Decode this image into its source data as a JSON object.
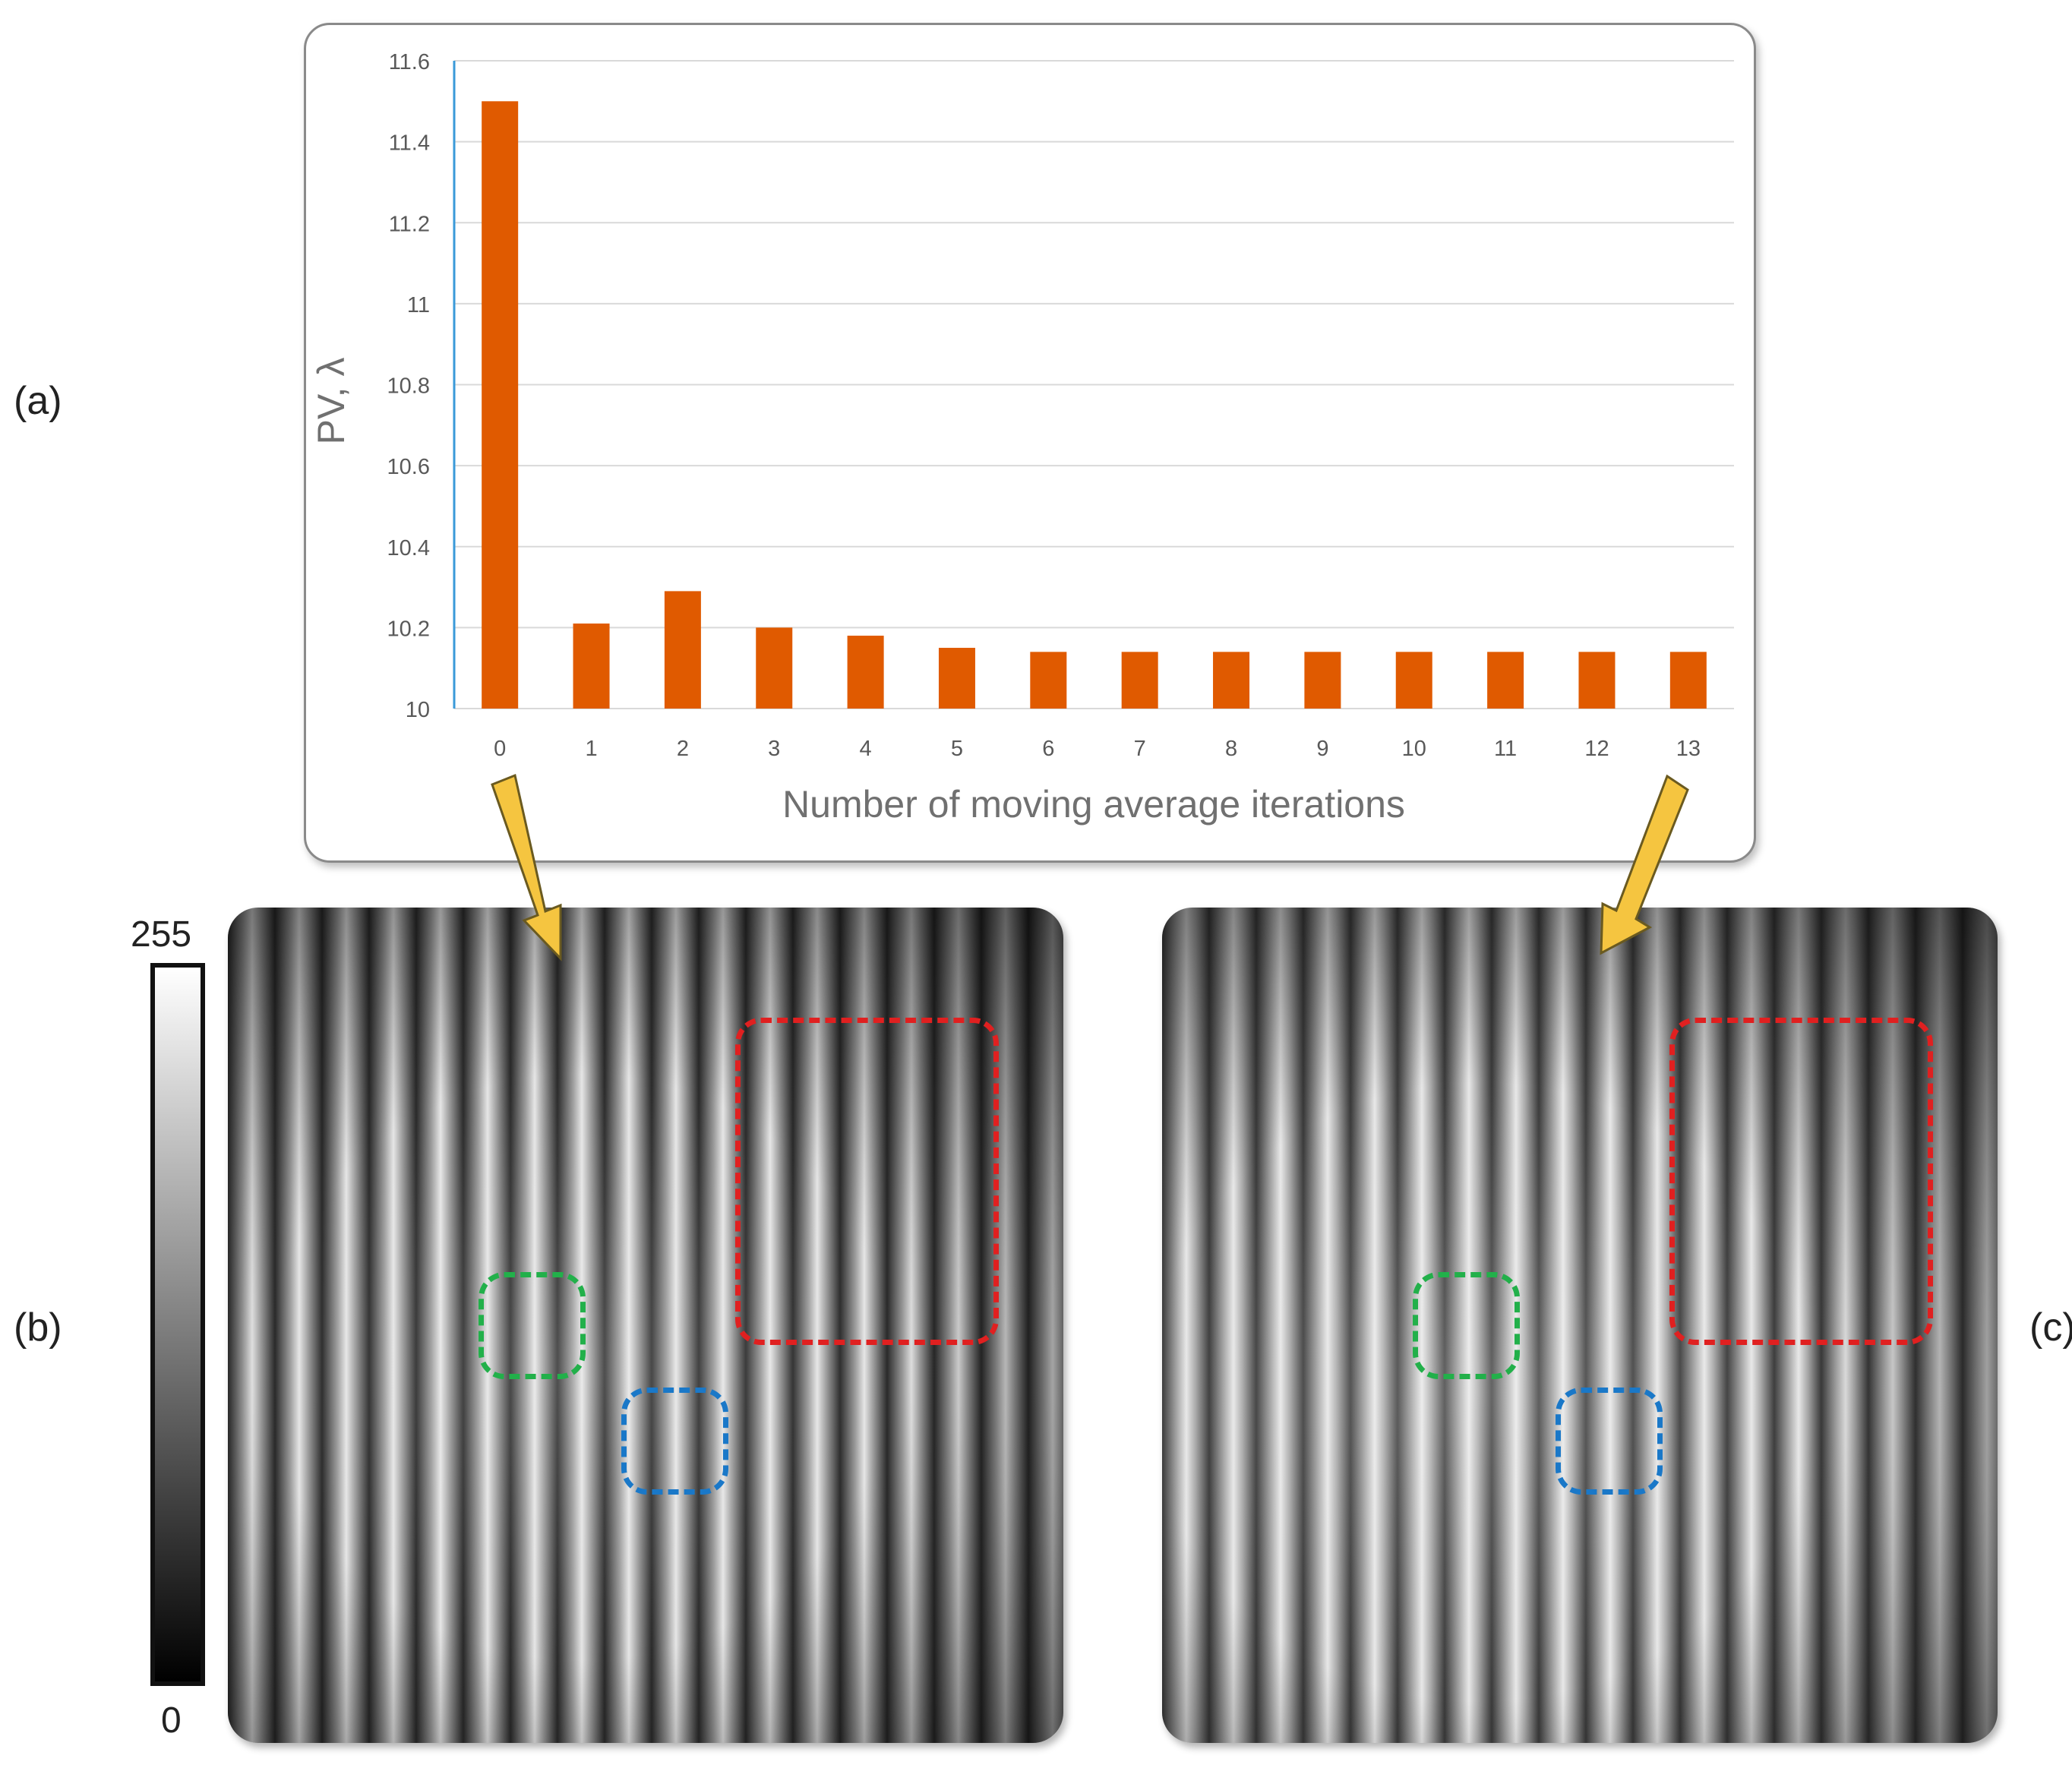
{
  "panel_labels": {
    "a": "(a)",
    "b": "(b)",
    "c": "(c)"
  },
  "colorbar": {
    "max_label": "255",
    "min_label": "0"
  },
  "colors": {
    "bar": "#e05a00",
    "axis_accent": "#3a9ad9",
    "box_red": "#e02020",
    "box_green": "#22b04a",
    "box_blue": "#1a78c8",
    "arrow": "#f5c540"
  },
  "chart_data": {
    "type": "bar",
    "categories": [
      "0",
      "1",
      "2",
      "3",
      "4",
      "5",
      "6",
      "7",
      "8",
      "9",
      "10",
      "11",
      "12",
      "13"
    ],
    "values": [
      11.5,
      10.21,
      10.29,
      10.2,
      10.18,
      10.15,
      10.14,
      10.14,
      10.14,
      10.14,
      10.14,
      10.14,
      10.14,
      10.14
    ],
    "ylim": [
      10,
      11.6
    ],
    "yticks": [
      "10",
      "10.2",
      "10.4",
      "10.6",
      "10.8",
      "11",
      "11.2",
      "11.4",
      "11.6"
    ],
    "xlabel": "Number of moving average iterations",
    "ylabel": "PV, λ",
    "grid": true
  }
}
